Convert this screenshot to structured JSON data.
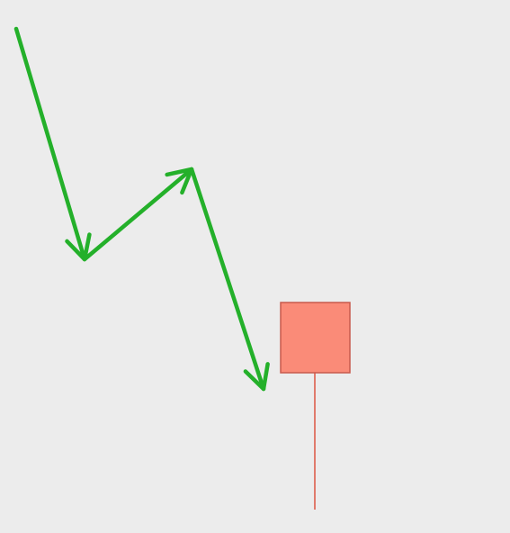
{
  "diagram": {
    "background_color": "#ececec",
    "arrow_color": "#24b02a",
    "candle_body_color": "#fa8b78",
    "candle_border_color": "#c85a4c",
    "candle_wick_color": "#e07a6c",
    "elements": [
      {
        "name": "arrow-down-1-icon",
        "kind": "arrow",
        "direction": "down"
      },
      {
        "name": "arrow-up-icon",
        "kind": "arrow",
        "direction": "up"
      },
      {
        "name": "arrow-down-2-icon",
        "kind": "arrow",
        "direction": "down"
      },
      {
        "name": "bearish-candle",
        "kind": "candlestick",
        "type": "bearish",
        "parts": [
          "body",
          "lower-wick"
        ]
      }
    ]
  }
}
